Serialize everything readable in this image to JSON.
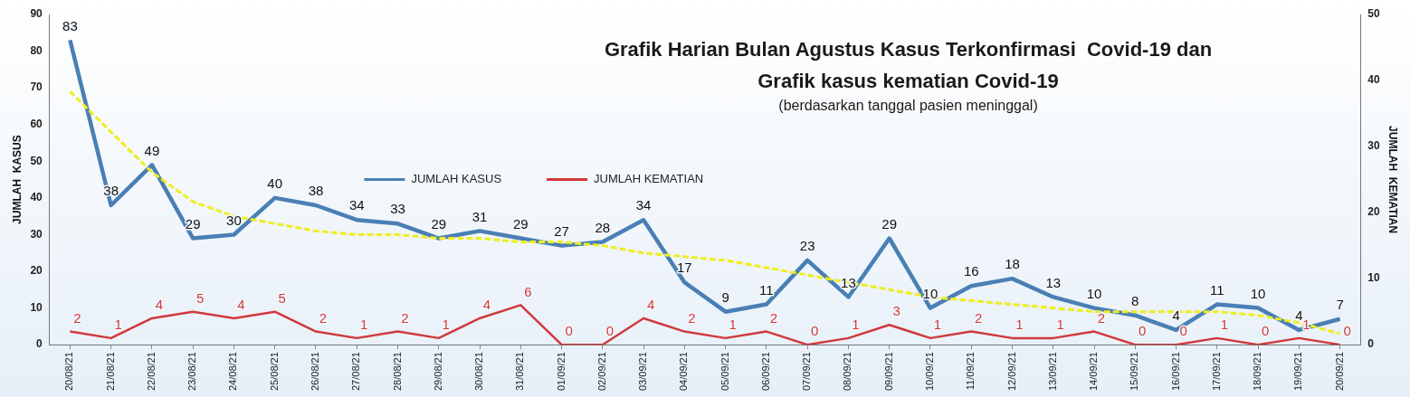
{
  "chart_data": {
    "type": "line",
    "title": "Grafik Harian Bulan Agustus Kasus Terkonfirmasi  Covid-19 dan\nGrafik kasus kematian Covid-19",
    "subtitle": "(berdasarkan tanggal pasien meninggal)",
    "ylabel": "JUMLAH  KASUS",
    "y2label": "JUMLAH  KEMATIAN",
    "categories": [
      "20/08/21",
      "21/08/21",
      "22/08/21",
      "23/08/21",
      "24/08/21",
      "25/08/21",
      "26/08/21",
      "27/08/21",
      "28/08/21",
      "29/08/21",
      "30/08/21",
      "31/08/21",
      "01/09/21",
      "02/09/21",
      "03/09/21",
      "04/09/21",
      "05/09/21",
      "06/09/21",
      "07/09/21",
      "08/09/21",
      "09/09/21",
      "10/09/21",
      "11/09/21",
      "12/09/21",
      "13/09/21",
      "14/09/21",
      "15/09/21",
      "16/09/21",
      "17/09/21",
      "18/09/21",
      "19/09/21",
      "20/09/21"
    ],
    "series": [
      {
        "name": "JUMLAH KASUS",
        "color": "#4a7fb5",
        "values": [
          83,
          38,
          49,
          29,
          30,
          40,
          38,
          34,
          33,
          29,
          31,
          29,
          27,
          28,
          34,
          17,
          9,
          11,
          23,
          13,
          29,
          10,
          16,
          18,
          13,
          10,
          8,
          4,
          11,
          10,
          4,
          7
        ],
        "value_labels": [
          "83",
          "38",
          "49",
          "29",
          "30",
          "40",
          "38",
          "34",
          "33",
          "29",
          "31",
          "29",
          "27",
          "28",
          "34",
          "17",
          "9",
          "11",
          "23",
          "13",
          "29",
          "10",
          "16",
          "18",
          "13",
          "10",
          "8",
          "4",
          "11",
          "10",
          "4",
          "7"
        ]
      },
      {
        "name": "JUMLAH KEMATIAN",
        "color": "#d0393b",
        "axis": "y2",
        "values": [
          2,
          1,
          4,
          5,
          4,
          5,
          2,
          1,
          2,
          1,
          4,
          6,
          0,
          0,
          4,
          2,
          1,
          2,
          0,
          1,
          3,
          1,
          2,
          1,
          1,
          2,
          0,
          0,
          1,
          0,
          1,
          0
        ],
        "value_labels": [
          "2",
          "1",
          "4",
          "5",
          "4",
          "5",
          "2",
          "1",
          "2",
          "1",
          "4",
          "6",
          "0",
          "0",
          "4",
          "2",
          "1",
          "2",
          "0",
          "1",
          "3",
          "1",
          "2",
          "1",
          "1",
          "2",
          "0",
          "0",
          "1",
          "0",
          "1",
          "0"
        ]
      },
      {
        "color": "#eeee22",
        "line_style": "dashed",
        "values": [
          69,
          58,
          47,
          39,
          35,
          33,
          31,
          30,
          30,
          29,
          29,
          28,
          28,
          27,
          25,
          24,
          23,
          21,
          19,
          17,
          15,
          13,
          12,
          11,
          10,
          9,
          9,
          9,
          9,
          8,
          6,
          3
        ]
      }
    ],
    "ylim": [
      0,
      90
    ],
    "yticks": [
      0,
      10,
      20,
      30,
      40,
      50,
      60,
      70,
      80,
      90
    ],
    "y2lim": [
      0,
      50
    ],
    "y2ticks": [
      0,
      10,
      20,
      30,
      40,
      50
    ],
    "grid": false,
    "legend": "center left",
    "marker": "none",
    "line_style": "solid"
  }
}
